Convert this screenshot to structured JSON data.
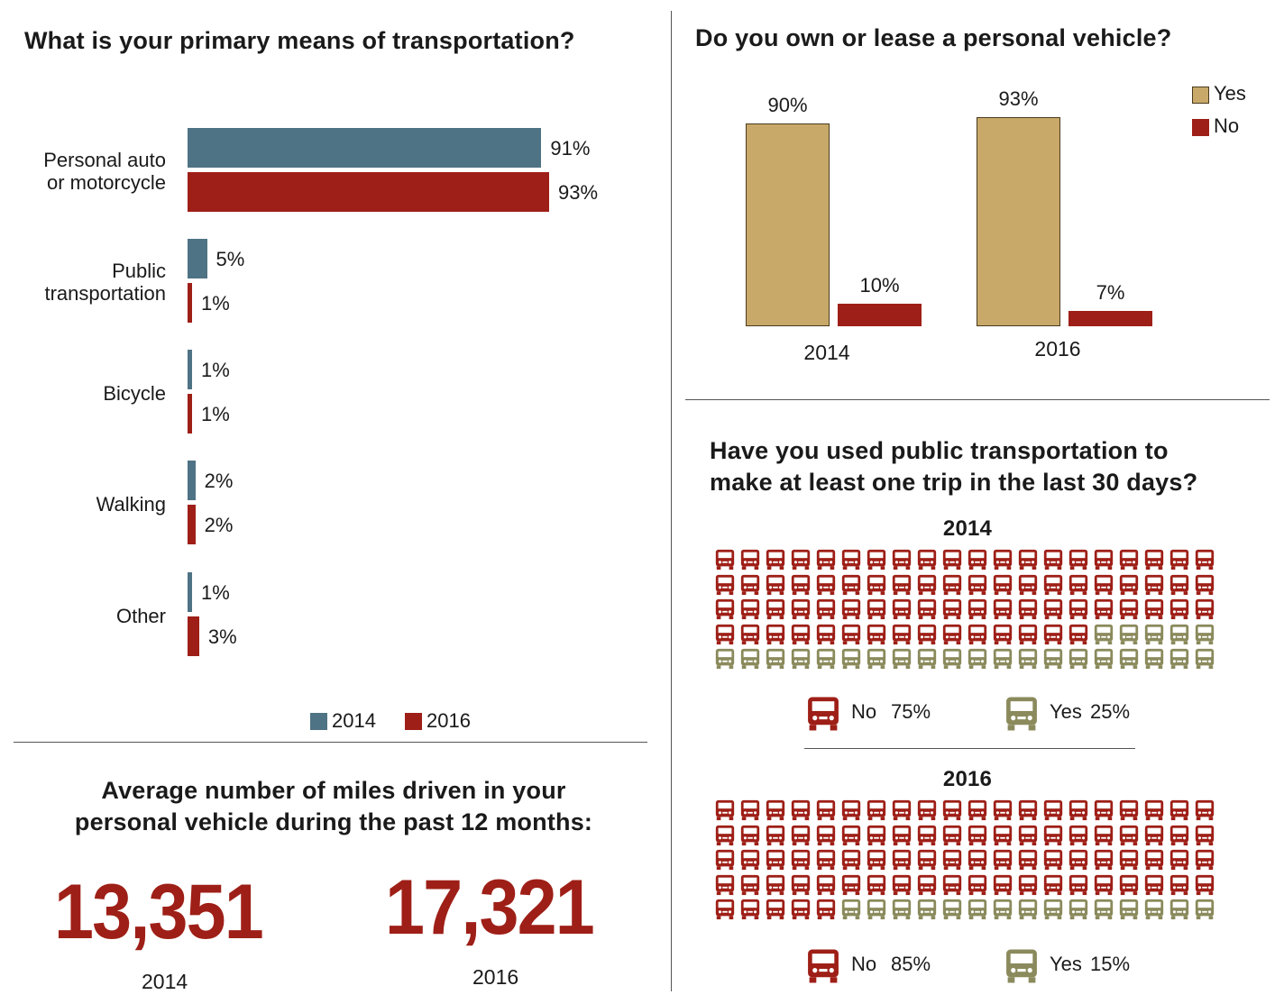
{
  "colors": {
    "series_2014": "#4e7384",
    "series_2016": "#9e1f17",
    "yes_tan": "#c9a96a",
    "bus_no": "#9e1f17",
    "bus_yes": "#8a8a5c"
  },
  "chart_data": [
    {
      "type": "bar",
      "orientation": "horizontal",
      "title": "What is your primary means of transportation?",
      "categories": [
        "Personal auto\nor motorcycle",
        "Public\ntransportation",
        "Bicycle",
        "Walking",
        "Other"
      ],
      "series": [
        {
          "name": "2014",
          "values": [
            91,
            5,
            1,
            2,
            1
          ],
          "labels": [
            "91%",
            "5%",
            "1%",
            "2%",
            "1%"
          ]
        },
        {
          "name": "2016",
          "values": [
            93,
            1,
            1,
            2,
            3
          ],
          "labels": [
            "93%",
            "1%",
            "1%",
            "2%",
            "3%"
          ]
        }
      ],
      "legend": [
        "2014",
        "2016"
      ],
      "legend_position": "bottom"
    },
    {
      "type": "bar",
      "title": "Do you own or lease a personal vehicle?",
      "categories": [
        "2014",
        "2016"
      ],
      "series": [
        {
          "name": "Yes",
          "values": [
            90,
            93
          ],
          "labels": [
            "90%",
            "93%"
          ]
        },
        {
          "name": "No",
          "values": [
            10,
            7
          ],
          "labels": [
            "10%",
            "7%"
          ]
        }
      ],
      "legend": [
        "Yes",
        "No"
      ],
      "legend_position": "top-right"
    },
    {
      "type": "table",
      "title": "Average number of miles driven in your\npersonal vehicle during the past 12 months:",
      "values": [
        {
          "year": "2014",
          "value": "13,351"
        },
        {
          "year": "2016",
          "value": "17,321"
        }
      ]
    },
    {
      "type": "pictogram",
      "title": "Have you used public transportation to\nmake at least one trip in the last 30 days?",
      "icon": "bus-icon",
      "groups": [
        {
          "year": "2014",
          "total_icons": 100,
          "no_icons": 75,
          "yes_icons": 25,
          "no_label": "No",
          "no_value": "75%",
          "yes_label": "Yes",
          "yes_value": "25%"
        },
        {
          "year": "2016",
          "total_icons": 100,
          "no_icons": 85,
          "yes_icons": 15,
          "no_label": "No",
          "no_value": "85%",
          "yes_label": "Yes",
          "yes_value": "15%"
        }
      ]
    }
  ]
}
